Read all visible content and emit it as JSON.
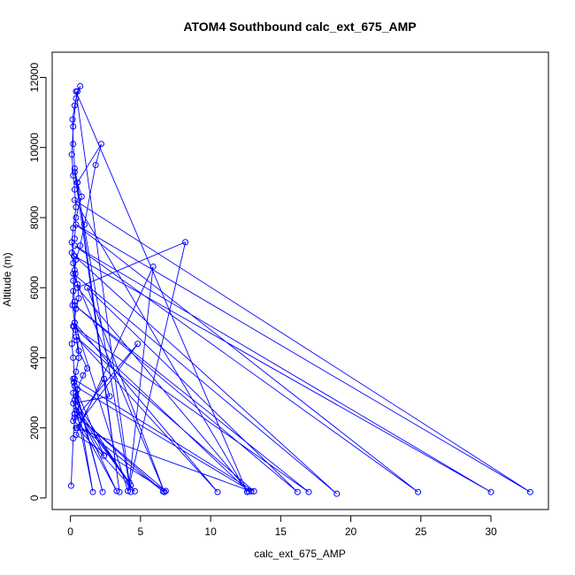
{
  "chart_data": {
    "type": "line",
    "title": "ATOM4 Southbound calc_ext_675_AMP",
    "xlabel": "calc_ext_675_AMP",
    "ylabel": "Altitude (m)",
    "xlim": [
      -1.3,
      34.1
    ],
    "ylim": [
      -330,
      12720
    ],
    "x_ticks": [
      0,
      5,
      10,
      15,
      20,
      25,
      30
    ],
    "y_ticks": [
      0,
      2000,
      4000,
      6000,
      8000,
      10000,
      12000
    ],
    "grid": false,
    "legend": "none",
    "series": [
      {
        "line_color": "#0000ff",
        "marker": "open-circle",
        "x": [
          0.05,
          0.2,
          0.3,
          0.4,
          0.3,
          0.2,
          0.1,
          0.25,
          0.4,
          0.6,
          0.5,
          0.3,
          0.2,
          0.1,
          0.3,
          0.4,
          0.8,
          0.5,
          0.3,
          0.2,
          0.15,
          0.3,
          0.5,
          0.7,
          0.4,
          0.2,
          0.1,
          0.2,
          0.3,
          0.4,
          0.2,
          0.1,
          0.25,
          0.35,
          0.2,
          0.15,
          0.3,
          0.45,
          0.6,
          0.4,
          0.25,
          0.2,
          0.3,
          0.5,
          0.9,
          1.2,
          0.6,
          0.35,
          0.3,
          0.2,
          0.4,
          0.7,
          1.0,
          1.8,
          2.2,
          0.5,
          3.5,
          0.3,
          4.3,
          0.4,
          12.6,
          0.3,
          32.8,
          0.4,
          24.8,
          0.3,
          30.0,
          0.3,
          19.0,
          0.2,
          6.7,
          1.2,
          16.2,
          0.3,
          17.0,
          0.2,
          12.7,
          0.5,
          8.2,
          4.1,
          0.3,
          10.5,
          0.4,
          13.1,
          0.2,
          2.3,
          0.4,
          1.6,
          0.3,
          4.3,
          0.4,
          3.3,
          0.3,
          6.6,
          0.2,
          4.8,
          0.4,
          12.9,
          0.3,
          2.4,
          0.4,
          4.6,
          0.5,
          2.4,
          2.8,
          0.2,
          4.2,
          5.9,
          0.4,
          6.8,
          0.3
        ],
        "y": [
          350,
          1700,
          2300,
          2900,
          3400,
          4000,
          4400,
          4900,
          5400,
          5700,
          6100,
          6500,
          6700,
          7000,
          7400,
          8000,
          8600,
          9000,
          9400,
          10100,
          10800,
          11200,
          11600,
          11750,
          11400,
          10600,
          9800,
          9200,
          8800,
          8300,
          7700,
          7300,
          6900,
          6400,
          5900,
          5500,
          5000,
          4500,
          4000,
          3600,
          3300,
          3000,
          2800,
          3100,
          3500,
          3700,
          4200,
          4800,
          5600,
          6200,
          6800,
          7200,
          7800,
          9500,
          10100,
          9000,
          170,
          9300,
          170,
          11600,
          170,
          8500,
          170,
          7800,
          170,
          7200,
          170,
          6900,
          120,
          6400,
          170,
          6000,
          170,
          5500,
          170,
          4900,
          190,
          6000,
          7300,
          200,
          5000,
          170,
          4600,
          190,
          3400,
          170,
          3000,
          170,
          2800,
          360,
          2600,
          200,
          2400,
          190,
          2200,
          4400,
          2000,
          190,
          3200,
          1200,
          2500,
          190,
          2000,
          3400,
          2900,
          2700,
          450,
          6600,
          1800,
          200,
          2400
        ]
      }
    ]
  }
}
